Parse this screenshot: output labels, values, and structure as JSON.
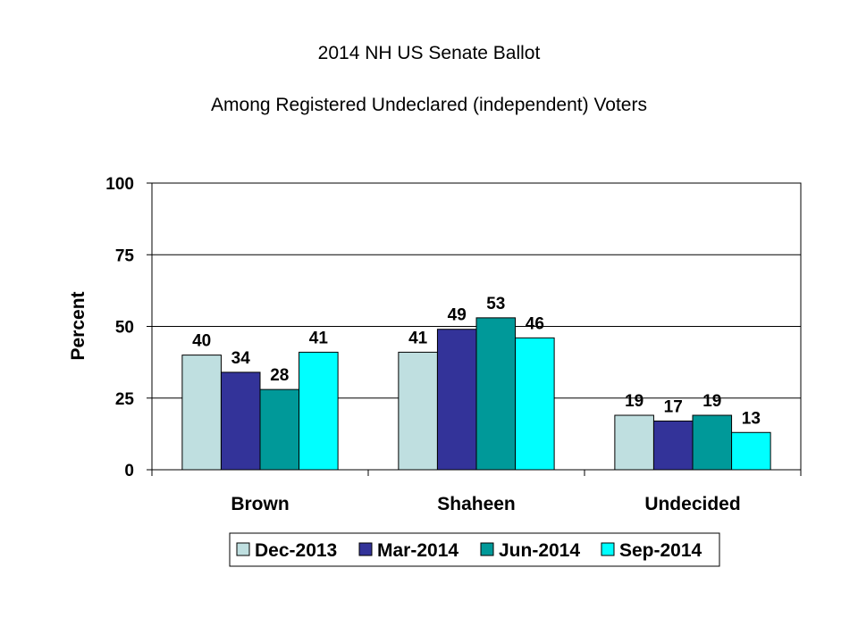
{
  "chart_data": {
    "type": "bar",
    "title": "2014 NH US Senate Ballot",
    "subtitle": "Among Registered Undeclared (independent) Voters",
    "ylabel": "Percent",
    "xlabel": "",
    "ylim": [
      0,
      100
    ],
    "yticks": [
      0,
      25,
      50,
      75,
      100
    ],
    "grid": true,
    "legend_position": "bottom",
    "categories": [
      "Brown",
      "Shaheen",
      "Undecided"
    ],
    "series": [
      {
        "name": "Dec-2013",
        "color": "#BFDFE0",
        "values": [
          40,
          41,
          19
        ]
      },
      {
        "name": "Mar-2014",
        "color": "#333399",
        "values": [
          34,
          49,
          17
        ]
      },
      {
        "name": "Jun-2014",
        "color": "#009999",
        "values": [
          28,
          53,
          19
        ]
      },
      {
        "name": "Sep-2014",
        "color": "#00FFFF",
        "values": [
          41,
          46,
          13
        ]
      }
    ]
  }
}
